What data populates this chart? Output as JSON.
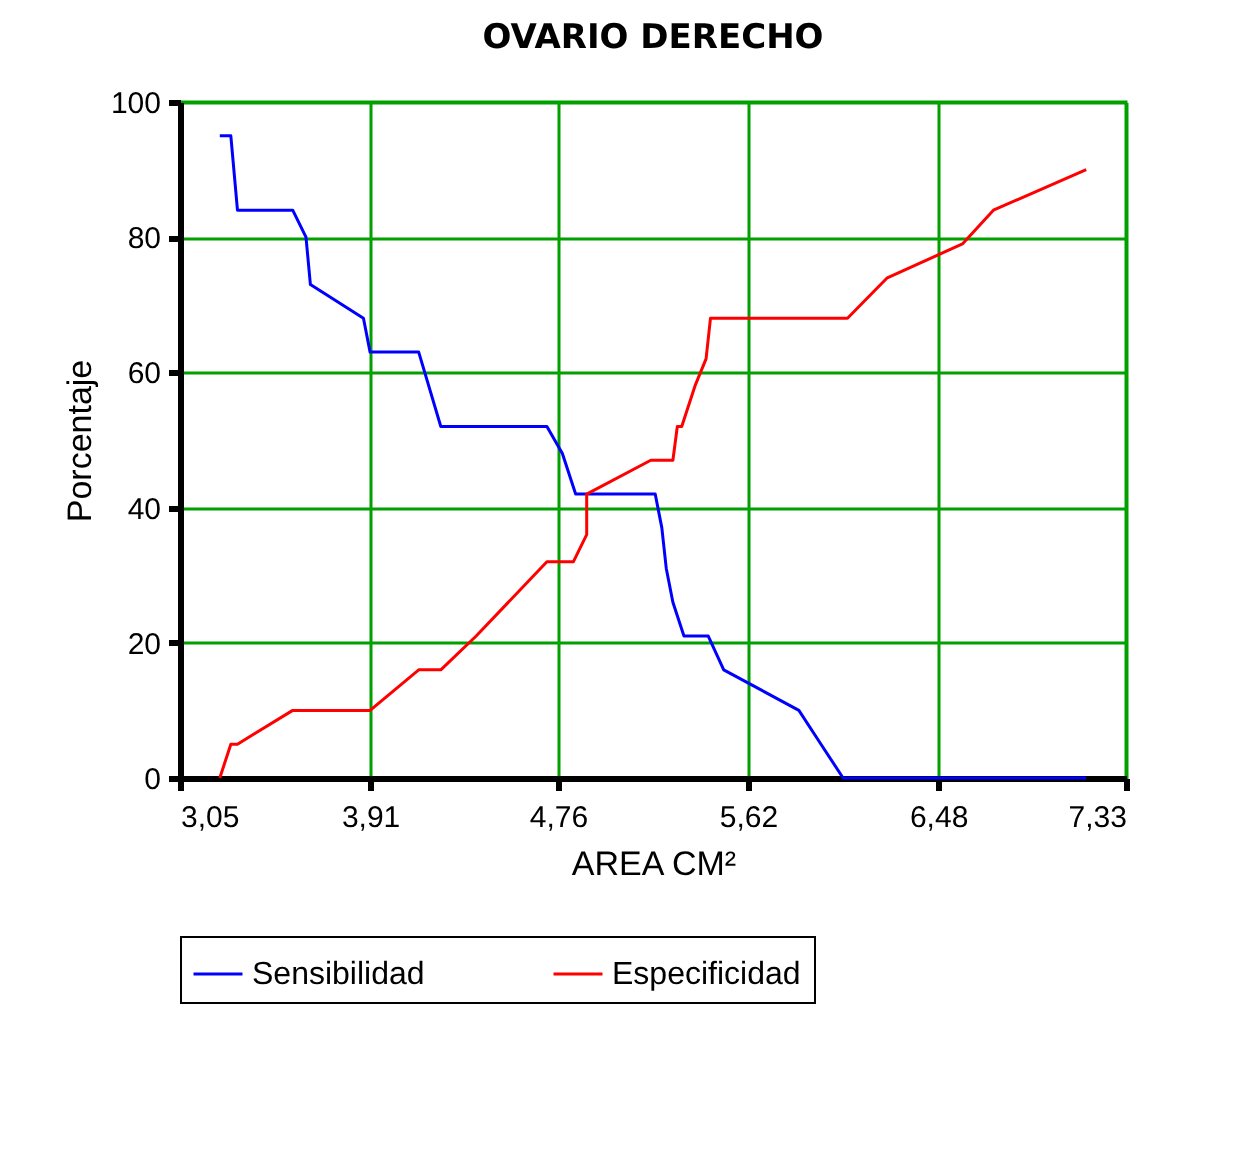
{
  "chart_data": {
    "type": "line",
    "title": "OVARIO DERECHO",
    "xlabel": "AREA CM²",
    "ylabel": "Porcentaje",
    "xlim": [
      3.05,
      7.33
    ],
    "xticks": [
      {
        "value": 3.05,
        "label": "3,05"
      },
      {
        "value": 3.91,
        "label": "3,91"
      },
      {
        "value": 4.76,
        "label": "4,76"
      },
      {
        "value": 5.62,
        "label": "5,62"
      },
      {
        "value": 6.48,
        "label": "6,48"
      },
      {
        "value": 7.33,
        "label": "7,33"
      }
    ],
    "ylim": [
      0,
      100
    ],
    "yticks": [
      0,
      20,
      40,
      60,
      80,
      100
    ],
    "grid": true,
    "legend": "bottom",
    "marker": "none",
    "line_style": "solid",
    "series": [
      {
        "name": "Sensibilidad",
        "color": "#0000ff",
        "x": [
          3.23,
          3.28,
          3.31,
          3.56,
          3.62,
          3.64,
          3.88,
          3.91,
          4.13,
          4.23,
          4.71,
          4.78,
          4.84,
          5.2,
          5.23,
          5.25,
          5.28,
          5.33,
          5.44,
          5.51,
          5.85,
          5.95,
          6.05,
          7.15
        ],
        "values": [
          95,
          95,
          84,
          84,
          80,
          73,
          68,
          63,
          63,
          52,
          52,
          48,
          42,
          42,
          37,
          31,
          26,
          21,
          21,
          16,
          10,
          5,
          0,
          0
        ]
      },
      {
        "name": "Especificidad",
        "color": "#ff0000",
        "x": [
          3.23,
          3.28,
          3.31,
          3.56,
          3.91,
          4.13,
          4.23,
          4.39,
          4.71,
          4.83,
          4.89,
          4.89,
          5.18,
          5.28,
          5.3,
          5.32,
          5.38,
          5.43,
          5.45,
          6.07,
          6.25,
          6.59,
          6.73,
          7.15
        ],
        "values": [
          0,
          5,
          5,
          10,
          10,
          16,
          16,
          21,
          32,
          32,
          36,
          42,
          47,
          47,
          52,
          52,
          58,
          62,
          68,
          68,
          74,
          79,
          84,
          90
        ]
      }
    ]
  }
}
